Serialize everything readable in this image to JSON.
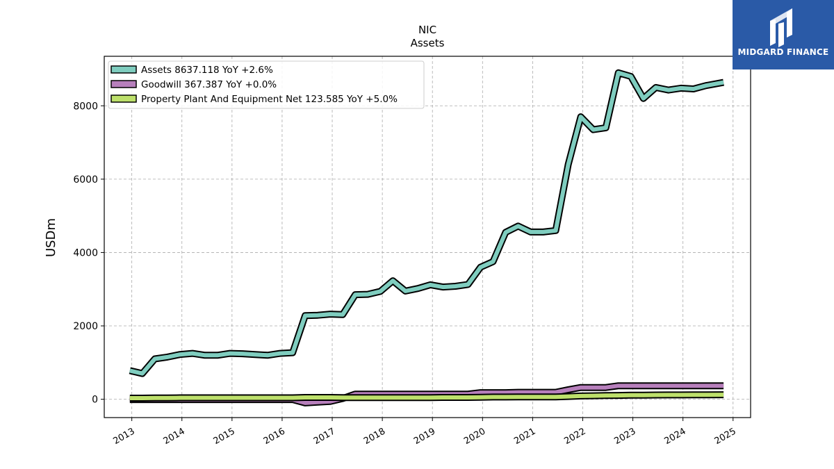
{
  "chart_data": {
    "type": "line",
    "title": "NIC",
    "subtitle": "Assets",
    "ylabel": "USDm",
    "xlim": [
      2012.45,
      2025.35
    ],
    "ylim": [
      -500,
      9350
    ],
    "yticks": [
      0,
      2000,
      4000,
      6000,
      8000
    ],
    "xticks": [
      "2013",
      "2014",
      "2015",
      "2016",
      "2017",
      "2018",
      "2019",
      "2020",
      "2021",
      "2022",
      "2023",
      "2024",
      "2025"
    ],
    "grid": true,
    "legend_position": "top-left",
    "series": [
      {
        "name": "Assets",
        "legend_label": "Assets  8637.118 YoY +2.6%",
        "color": "#7fcdbf",
        "x": [
          2012.96,
          2013.21,
          2013.46,
          2013.71,
          2013.96,
          2014.21,
          2014.46,
          2014.71,
          2014.96,
          2015.21,
          2015.46,
          2015.71,
          2015.96,
          2016.21,
          2016.46,
          2016.71,
          2016.96,
          2017.21,
          2017.46,
          2017.71,
          2017.96,
          2018.21,
          2018.46,
          2018.71,
          2018.96,
          2019.21,
          2019.46,
          2019.71,
          2019.96,
          2020.21,
          2020.46,
          2020.71,
          2020.96,
          2021.21,
          2021.46,
          2021.71,
          2021.96,
          2022.21,
          2022.46,
          2022.71,
          2022.96,
          2023.21,
          2023.46,
          2023.71,
          2023.96,
          2024.21,
          2024.46,
          2024.81
        ],
        "values": [
          780,
          700,
          1100,
          1150,
          1220,
          1250,
          1200,
          1200,
          1250,
          1240,
          1220,
          1200,
          1250,
          1270,
          2280,
          2290,
          2320,
          2310,
          2850,
          2860,
          2940,
          3230,
          2950,
          3020,
          3120,
          3060,
          3080,
          3130,
          3600,
          3750,
          4550,
          4720,
          4560,
          4560,
          4600,
          6400,
          7700,
          7350,
          7400,
          8900,
          8800,
          8200,
          8500,
          8430,
          8480,
          8460,
          8550,
          8637
        ]
      },
      {
        "name": "Goodwill",
        "legend_label": "Goodwill  367.387 YoY +0.0%",
        "color": "#b77fbc",
        "x": [
          2012.96,
          2013.21,
          2013.46,
          2013.71,
          2013.96,
          2014.21,
          2014.46,
          2014.71,
          2014.96,
          2015.21,
          2015.46,
          2015.71,
          2015.96,
          2016.21,
          2016.46,
          2016.71,
          2016.96,
          2017.21,
          2017.46,
          2017.71,
          2017.96,
          2018.21,
          2018.46,
          2018.71,
          2018.96,
          2019.21,
          2019.46,
          2019.71,
          2019.96,
          2020.21,
          2020.46,
          2020.71,
          2020.96,
          2021.21,
          2021.46,
          2021.71,
          2021.96,
          2022.21,
          2022.46,
          2022.71,
          2022.96,
          2023.21,
          2023.46,
          2023.71,
          2023.96,
          2024.21,
          2024.46,
          2024.81
        ],
        "values": [
          -10,
          -10,
          -10,
          -10,
          -10,
          -10,
          -10,
          -10,
          -10,
          -10,
          -10,
          -10,
          -10,
          -10,
          -100,
          -80,
          -60,
          20,
          140,
          140,
          140,
          140,
          140,
          140,
          140,
          140,
          140,
          140,
          180,
          180,
          180,
          190,
          190,
          190,
          190,
          260,
          320,
          320,
          320,
          367,
          367,
          367,
          367,
          367,
          367,
          367,
          367,
          367
        ]
      },
      {
        "name": "Property Plant And Equipment Net",
        "legend_label": "Property Plant And Equipment Net  123.585 YoY +5.0%",
        "color": "#bde06b",
        "x": [
          2012.96,
          2013.21,
          2013.46,
          2013.71,
          2013.96,
          2014.21,
          2014.46,
          2014.71,
          2014.96,
          2015.21,
          2015.46,
          2015.71,
          2015.96,
          2016.21,
          2016.46,
          2016.71,
          2016.96,
          2017.21,
          2017.46,
          2017.71,
          2017.96,
          2018.21,
          2018.46,
          2018.71,
          2018.96,
          2019.21,
          2019.46,
          2019.71,
          2019.96,
          2020.21,
          2020.46,
          2020.71,
          2020.96,
          2021.21,
          2021.46,
          2021.71,
          2021.96,
          2022.21,
          2022.46,
          2022.71,
          2022.96,
          2023.21,
          2023.46,
          2023.71,
          2023.96,
          2024.21,
          2024.46,
          2024.81
        ],
        "values": [
          30,
          30,
          35,
          35,
          40,
          40,
          40,
          40,
          40,
          40,
          40,
          40,
          40,
          40,
          50,
          50,
          50,
          45,
          45,
          45,
          45,
          45,
          45,
          45,
          45,
          50,
          50,
          50,
          55,
          60,
          60,
          65,
          65,
          65,
          65,
          75,
          90,
          95,
          100,
          105,
          110,
          112,
          115,
          117,
          118,
          120,
          122,
          124
        ]
      }
    ]
  },
  "branding": {
    "logo_text": "MIDGARD FINANCE",
    "logo_color": "#2a5aa7"
  }
}
